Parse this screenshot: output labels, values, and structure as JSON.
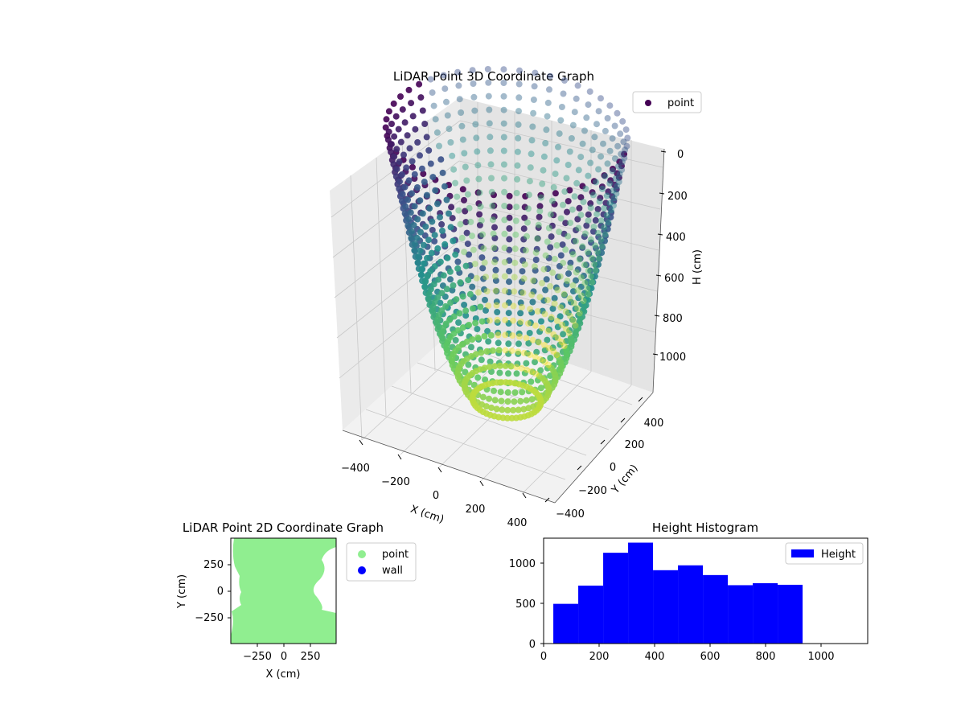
{
  "chart_data": [
    {
      "type": "scatter",
      "projection": "3d",
      "title": "LiDAR Point 3D Coordinate Graph",
      "xlabel": "X (cm)",
      "ylabel": "Y (cm)",
      "zlabel": "H (cm)",
      "xticks": [
        "−400",
        "−200",
        "0",
        "200",
        "400"
      ],
      "yticks": [
        "−400",
        "−200",
        "0",
        "200",
        "400"
      ],
      "zticks": [
        "0",
        "200",
        "400",
        "600",
        "800",
        "1000"
      ],
      "zaxis_inverted": true,
      "xlim": [
        -450,
        450
      ],
      "ylim": [
        -450,
        450
      ],
      "zlim": [
        0,
        1100
      ],
      "colormap": "viridis",
      "grid": true,
      "legend": {
        "position": "top-right",
        "entries": [
          {
            "label": "point",
            "color": "#440154"
          }
        ]
      },
      "series": [
        {
          "name": "point",
          "shape": "bowl",
          "radius_top": 450,
          "depth": 1100
        }
      ]
    },
    {
      "type": "scatter",
      "title": "LiDAR Point 2D Coordinate Graph",
      "xlabel": "X (cm)",
      "ylabel": "Y (cm)",
      "xticks": [
        "−250",
        "0",
        "250"
      ],
      "yticks": [
        "250",
        "0",
        "−250"
      ],
      "xlim": [
        -500,
        500
      ],
      "ylim": [
        -500,
        500
      ],
      "legend": {
        "position": "outside-right",
        "entries": [
          {
            "label": "point",
            "color": "#90ee90"
          },
          {
            "label": "wall",
            "color": "#0000ff"
          }
        ]
      },
      "series": [
        {
          "name": "point",
          "color": "#90ee90",
          "coverage": "filled region"
        },
        {
          "name": "wall",
          "color": "#0000ff",
          "points": []
        }
      ]
    },
    {
      "type": "bar",
      "subtype": "histogram",
      "title": "Height Histogram",
      "xlabel": "",
      "ylabel": "",
      "xlim": [
        0,
        1170
      ],
      "ylim": [
        0,
        1300
      ],
      "xticks": [
        "0",
        "200",
        "400",
        "600",
        "800",
        "1000"
      ],
      "yticks": [
        "0",
        "500",
        "1000"
      ],
      "color": "#0000ff",
      "legend": {
        "position": "top-right",
        "entries": [
          {
            "label": "Height",
            "color": "#0000ff"
          }
        ]
      },
      "bin_edges": [
        35,
        125,
        215,
        305,
        395,
        485,
        575,
        665,
        755,
        845,
        935
      ],
      "values": [
        490,
        715,
        1120,
        1245,
        905,
        965,
        845,
        720,
        745,
        725
      ]
    }
  ]
}
